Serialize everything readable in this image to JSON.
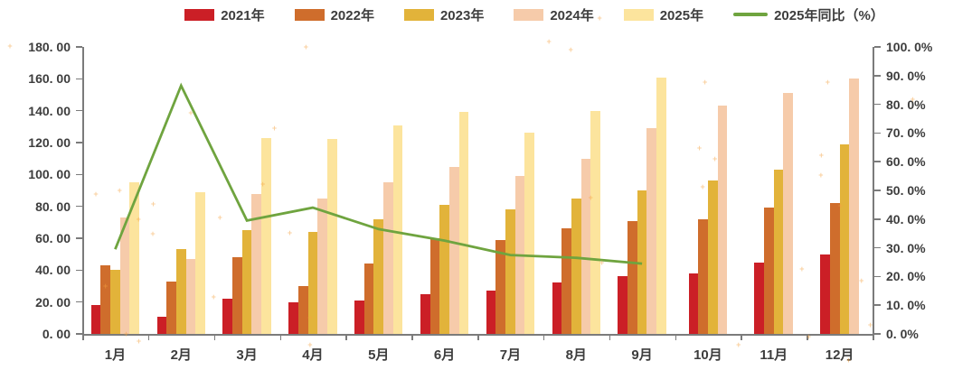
{
  "chart_data": {
    "type": "bar",
    "subtype": "grouped-bars-with-secondary-axis-line",
    "title": "",
    "grid": false,
    "legend_position": "top",
    "categories": [
      "1月",
      "2月",
      "3月",
      "4月",
      "5月",
      "6月",
      "7月",
      "8月",
      "9月",
      "10月",
      "11月",
      "12月"
    ],
    "series": [
      {
        "name": "2021年",
        "color": "#cb1f26",
        "axis": "left",
        "values": [
          18,
          11,
          22,
          20,
          21,
          25,
          27,
          32,
          36,
          38,
          45,
          50
        ]
      },
      {
        "name": "2022年",
        "color": "#cf6d2c",
        "axis": "left",
        "values": [
          43,
          33,
          48,
          30,
          44,
          60,
          59,
          66,
          71,
          72,
          79,
          82
        ]
      },
      {
        "name": "2023年",
        "color": "#e2b33a",
        "axis": "left",
        "values": [
          40,
          53,
          65,
          64,
          72,
          81,
          78,
          85,
          90,
          96,
          103,
          119
        ]
      },
      {
        "name": "2024年",
        "color": "#f6cbaa",
        "axis": "left",
        "values": [
          73,
          47,
          88,
          85,
          95,
          105,
          99,
          110,
          129,
          143,
          151,
          160
        ]
      },
      {
        "name": "2025年",
        "color": "#fce49d",
        "axis": "left",
        "values": [
          95,
          89,
          123,
          122,
          131,
          139,
          126,
          140,
          161,
          null,
          null,
          null
        ]
      }
    ],
    "line_series": {
      "name": "2025年同比（%）",
      "color": "#6fa43f",
      "axis": "right",
      "values": [
        29.5,
        86.5,
        39.5,
        44,
        36.5,
        32.5,
        27.5,
        26.5,
        24.5,
        null,
        null,
        null
      ]
    },
    "left_axis": {
      "min": 0,
      "max": 180,
      "step": 20,
      "tick_labels": [
        "0. 00",
        "20. 00",
        "40. 00",
        "60. 00",
        "80. 00",
        "100. 00",
        "120. 00",
        "140. 00",
        "160. 00",
        "180. 00"
      ]
    },
    "right_axis": {
      "min": 0,
      "max": 100,
      "step": 10,
      "tick_labels": [
        "0. 0%",
        "10. 0%",
        "20. 0%",
        "30. 0%",
        "40. 0%",
        "50. 0%",
        "60. 0%",
        "70. 0%",
        "80. 0%",
        "90. 0%",
        "100. 0%"
      ]
    },
    "legend": {
      "items": [
        {
          "label": "2021年",
          "type": "bar",
          "color": "#cb1f26"
        },
        {
          "label": "2022年",
          "type": "bar",
          "color": "#cf6d2c"
        },
        {
          "label": "2023年",
          "type": "bar",
          "color": "#e2b33a"
        },
        {
          "label": "2024年",
          "type": "bar",
          "color": "#f6cbaa"
        },
        {
          "label": "2025年",
          "type": "bar",
          "color": "#fce49d"
        },
        {
          "label": "2025年同比（%）",
          "type": "line",
          "color": "#6fa43f"
        }
      ]
    }
  }
}
